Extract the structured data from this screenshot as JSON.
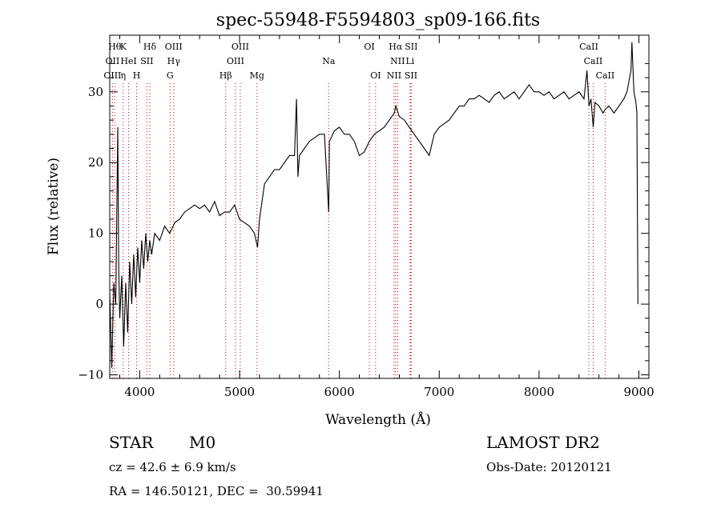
{
  "chart_data": {
    "type": "line",
    "title": "spec-55948-F5594803_sp09-166.fits",
    "xlabel": "Wavelength (Å)",
    "ylabel": "Flux (relative)",
    "xlim": [
      3700,
      9100
    ],
    "ylim": [
      -10.5,
      38
    ],
    "x_ticks": [
      4000,
      5000,
      6000,
      7000,
      8000,
      9000
    ],
    "y_ticks": [
      -10,
      0,
      10,
      20,
      30
    ],
    "grid": false,
    "series": [
      {
        "points": [
          [
            3700,
            1.5
          ],
          [
            3720,
            -9
          ],
          [
            3740,
            3
          ],
          [
            3760,
            0
          ],
          [
            3780,
            25
          ],
          [
            3790,
            5
          ],
          [
            3800,
            -2
          ],
          [
            3820,
            4
          ],
          [
            3840,
            -6
          ],
          [
            3860,
            3
          ],
          [
            3880,
            -4
          ],
          [
            3900,
            6
          ],
          [
            3920,
            0
          ],
          [
            3940,
            7
          ],
          [
            3960,
            1
          ],
          [
            3980,
            8
          ],
          [
            4000,
            3
          ],
          [
            4020,
            9
          ],
          [
            4040,
            5
          ],
          [
            4060,
            10
          ],
          [
            4080,
            6
          ],
          [
            4100,
            9
          ],
          [
            4120,
            7
          ],
          [
            4150,
            10
          ],
          [
            4200,
            9
          ],
          [
            4250,
            11
          ],
          [
            4300,
            10
          ],
          [
            4350,
            11.5
          ],
          [
            4400,
            12
          ],
          [
            4450,
            13
          ],
          [
            4500,
            13.5
          ],
          [
            4550,
            14
          ],
          [
            4600,
            13.5
          ],
          [
            4650,
            14
          ],
          [
            4700,
            13
          ],
          [
            4750,
            14.5
          ],
          [
            4800,
            12.5
          ],
          [
            4850,
            13
          ],
          [
            4900,
            13
          ],
          [
            4950,
            14
          ],
          [
            5000,
            12
          ],
          [
            5050,
            11.5
          ],
          [
            5100,
            11
          ],
          [
            5150,
            10
          ],
          [
            5180,
            8
          ],
          [
            5200,
            12
          ],
          [
            5250,
            17
          ],
          [
            5300,
            18
          ],
          [
            5350,
            19
          ],
          [
            5400,
            19
          ],
          [
            5450,
            20
          ],
          [
            5500,
            21
          ],
          [
            5550,
            21
          ],
          [
            5570,
            29
          ],
          [
            5585,
            18
          ],
          [
            5600,
            21
          ],
          [
            5650,
            22
          ],
          [
            5700,
            23
          ],
          [
            5750,
            23.5
          ],
          [
            5800,
            24
          ],
          [
            5850,
            24
          ],
          [
            5893,
            13
          ],
          [
            5900,
            23
          ],
          [
            5950,
            24.5
          ],
          [
            6000,
            25
          ],
          [
            6050,
            24
          ],
          [
            6100,
            24
          ],
          [
            6150,
            23
          ],
          [
            6200,
            21
          ],
          [
            6250,
            21.5
          ],
          [
            6300,
            23
          ],
          [
            6350,
            24
          ],
          [
            6400,
            24.5
          ],
          [
            6450,
            25
          ],
          [
            6500,
            26
          ],
          [
            6550,
            27
          ],
          [
            6565,
            28
          ],
          [
            6600,
            26.5
          ],
          [
            6650,
            26
          ],
          [
            6700,
            25
          ],
          [
            6750,
            24
          ],
          [
            6800,
            23
          ],
          [
            6850,
            22
          ],
          [
            6900,
            21
          ],
          [
            6950,
            24
          ],
          [
            7000,
            25
          ],
          [
            7050,
            25.5
          ],
          [
            7100,
            26
          ],
          [
            7150,
            27
          ],
          [
            7200,
            28
          ],
          [
            7250,
            28
          ],
          [
            7300,
            29
          ],
          [
            7350,
            29
          ],
          [
            7400,
            29.5
          ],
          [
            7450,
            29
          ],
          [
            7500,
            28.5
          ],
          [
            7550,
            29.5
          ],
          [
            7600,
            30
          ],
          [
            7650,
            29
          ],
          [
            7700,
            29.5
          ],
          [
            7750,
            30
          ],
          [
            7800,
            29
          ],
          [
            7850,
            30
          ],
          [
            7900,
            31
          ],
          [
            7950,
            30
          ],
          [
            8000,
            30
          ],
          [
            8050,
            29.5
          ],
          [
            8100,
            30
          ],
          [
            8150,
            29
          ],
          [
            8200,
            29.5
          ],
          [
            8250,
            30
          ],
          [
            8300,
            29
          ],
          [
            8350,
            29.5
          ],
          [
            8400,
            30
          ],
          [
            8450,
            29
          ],
          [
            8480,
            33
          ],
          [
            8500,
            28
          ],
          [
            8520,
            29
          ],
          [
            8542,
            25
          ],
          [
            8560,
            28.5
          ],
          [
            8600,
            28
          ],
          [
            8640,
            27
          ],
          [
            8662,
            27.5
          ],
          [
            8700,
            28
          ],
          [
            8750,
            27
          ],
          [
            8800,
            28
          ],
          [
            8850,
            29
          ],
          [
            8880,
            30
          ],
          [
            8920,
            33
          ],
          [
            8930,
            37
          ],
          [
            8950,
            30
          ],
          [
            8970,
            28.5
          ],
          [
            8980,
            27
          ],
          [
            8990,
            0
          ]
        ]
      }
    ],
    "line_markers": [
      {
        "x": 3750,
        "label": "Hθ",
        "row": 0
      },
      {
        "x": 3835,
        "label": "K",
        "row": 0
      },
      {
        "x": 4101,
        "label": "Hδ",
        "row": 0
      },
      {
        "x": 4340,
        "label": "OIII",
        "row": 0
      },
      {
        "x": 5007,
        "label": "OIII",
        "row": 0
      },
      {
        "x": 6300,
        "label": "OI",
        "row": 0
      },
      {
        "x": 6563,
        "label": "Hα",
        "row": 0
      },
      {
        "x": 6720,
        "label": "SII",
        "row": 0
      },
      {
        "x": 8498,
        "label": "CaII",
        "row": 0
      },
      {
        "x": 3727,
        "label": "OII",
        "row": 1
      },
      {
        "x": 3889,
        "label": "HeI",
        "row": 1
      },
      {
        "x": 4072,
        "label": "SII",
        "row": 1
      },
      {
        "x": 4340,
        "label": "Hγ",
        "row": 1
      },
      {
        "x": 4959,
        "label": "OIII",
        "row": 1
      },
      {
        "x": 5893,
        "label": "Na",
        "row": 1
      },
      {
        "x": 6583,
        "label": "NII",
        "row": 1
      },
      {
        "x": 6708,
        "label": "Li",
        "row": 1
      },
      {
        "x": 8542,
        "label": "CaII",
        "row": 1
      },
      {
        "x": 3727,
        "label": "OIII",
        "row": 2
      },
      {
        "x": 3835,
        "label": "η",
        "row": 2
      },
      {
        "x": 3969,
        "label": "H",
        "row": 2
      },
      {
        "x": 4304,
        "label": "G",
        "row": 2
      },
      {
        "x": 4861,
        "label": "Hβ",
        "row": 2
      },
      {
        "x": 5175,
        "label": "Mg",
        "row": 2
      },
      {
        "x": 6363,
        "label": "OI",
        "row": 2
      },
      {
        "x": 6548,
        "label": "NII",
        "row": 2
      },
      {
        "x": 6717,
        "label": "SII",
        "row": 2
      },
      {
        "x": 8662,
        "label": "CaII",
        "row": 2
      }
    ],
    "marker_color": "#cc0000"
  },
  "info": {
    "object_class": "STAR",
    "subclass": "M0",
    "survey": "LAMOST DR2",
    "cz": "cz = 42.6 ± 6.9 km/s",
    "obs_date": "Obs-Date: 20120121",
    "coords": "RA = 146.50121, DEC =  30.59941"
  }
}
